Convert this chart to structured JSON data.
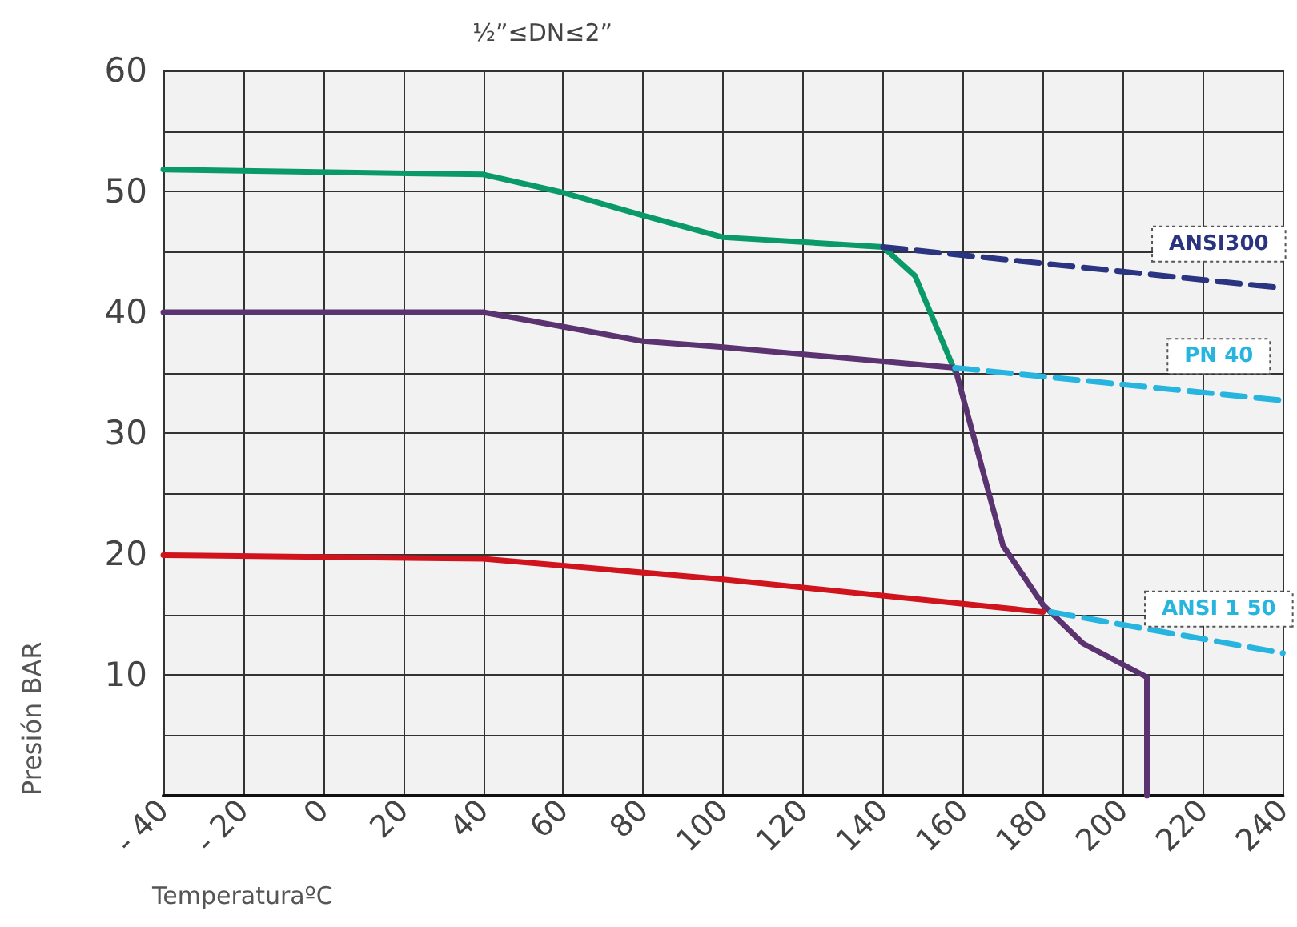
{
  "chart_data": {
    "type": "line",
    "title": "½”≤DN≤2”",
    "xlabel": "TemperaturaºC",
    "ylabel": "Presión BAR",
    "xlim": [
      -40,
      240
    ],
    "xticks": [
      {
        "value": -40,
        "label": "- 40"
      },
      {
        "value": -20,
        "label": "- 20"
      },
      0,
      20,
      40,
      60,
      80,
      100,
      120,
      140,
      160,
      180,
      200,
      220,
      240
    ],
    "ylim": [
      0,
      60
    ],
    "yticks": [
      {
        "value": 0,
        "label": null
      },
      {
        "value": 5,
        "label": null
      },
      10,
      {
        "value": 15,
        "label": null
      },
      20,
      {
        "value": 25,
        "label": null
      },
      30,
      {
        "value": 35,
        "label": null
      },
      40,
      {
        "value": 45,
        "label": null
      },
      50,
      {
        "value": 55,
        "label": null
      },
      60
    ],
    "grid": true,
    "marker": "none",
    "line_style": "solid",
    "series": [
      {
        "color": "#0a9a6a",
        "x": [
          -40,
          40,
          60,
          80,
          100,
          140,
          148,
          158
        ],
        "values": [
          51.8,
          51.4,
          49.9,
          48,
          46.2,
          45.4,
          43,
          35.1
        ]
      },
      {
        "color": "#5a3370",
        "x": [
          -40,
          40,
          80,
          100,
          158,
          170,
          180,
          190,
          206,
          206
        ],
        "values": [
          40,
          40,
          37.6,
          37.1,
          35.4,
          20.7,
          15.8,
          12.6,
          9.8,
          0
        ]
      },
      {
        "color": "#d0141e",
        "x": [
          -40,
          40,
          100,
          180
        ],
        "values": [
          19.9,
          19.6,
          17.9,
          15.2
        ]
      },
      {
        "name": "ANSI300",
        "color": "#2a3480",
        "line_style": "dashed",
        "x": [
          140,
          240
        ],
        "values": [
          45.4,
          42
        ]
      },
      {
        "name": "PN 40",
        "color": "#27b5e0",
        "line_style": "dashed",
        "x": [
          158,
          240
        ],
        "values": [
          35.4,
          32.7
        ]
      },
      {
        "name": "ANSI 1 50",
        "color": "#27b5e0",
        "line_style": "dashed",
        "x": [
          182,
          240
        ],
        "values": [
          15.2,
          11.8
        ]
      }
    ]
  }
}
